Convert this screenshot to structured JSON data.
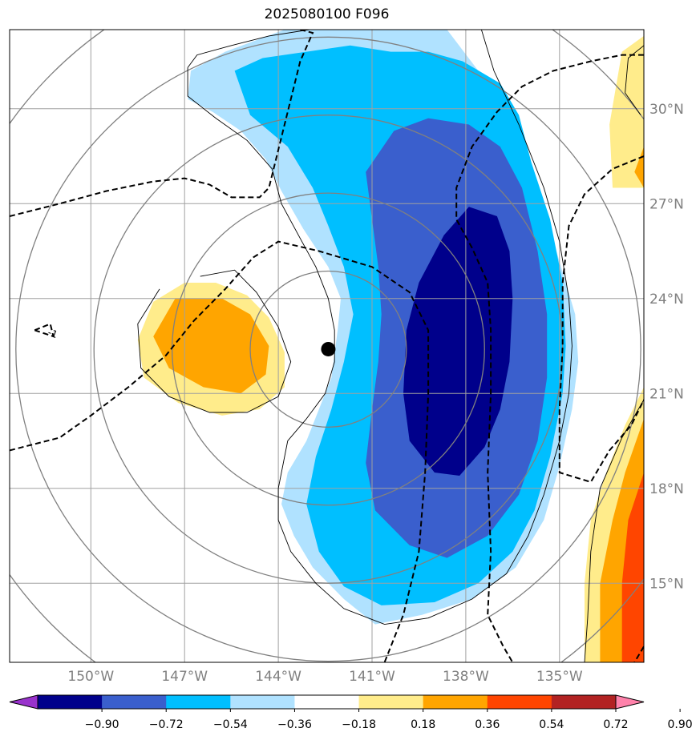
{
  "title": "2025080100 F096",
  "chart_data": {
    "type": "heatmap",
    "title": "2025080100 F096",
    "projection": "map",
    "lon_range": [
      -152.6,
      -132.3
    ],
    "lat_range": [
      12.5,
      32.5
    ],
    "lon_ticks": [
      -150,
      -147,
      -144,
      -141,
      -138,
      -135
    ],
    "lon_tick_labels": [
      "150°W",
      "147°W",
      "144°W",
      "141°W",
      "138°W",
      "135°W"
    ],
    "lat_ticks": [
      15,
      18,
      21,
      24,
      27,
      30
    ],
    "lat_tick_labels": [
      "15°N",
      "18°N",
      "21°N",
      "24°N",
      "27°N",
      "30°N"
    ],
    "grid": true,
    "center_marker": {
      "lon": -142.4,
      "lat": 22.4
    },
    "contour_label": "-1",
    "colorbar": {
      "orientation": "horizontal",
      "extend": "both",
      "levels": [
        -0.9,
        -0.72,
        -0.54,
        -0.36,
        -0.18,
        0.18,
        0.36,
        0.54,
        0.72,
        0.9
      ],
      "tick_labels": [
        "−0.90",
        "−0.72",
        "−0.54",
        "−0.36",
        "−0.18",
        "0.18",
        "0.36",
        "0.54",
        "0.72",
        "0.90"
      ],
      "colors": [
        "#9932cc",
        "#00008b",
        "#3a5fcd",
        "#00bfff",
        "#b0e2ff",
        "#ffffff",
        "#ffec8b",
        "#ffa500",
        "#ff4500",
        "#b22222",
        "#ff82ab"
      ]
    },
    "filled_regions": [
      {
        "level": "-0.18 to -0.36",
        "color": "#b0e2ff",
        "pts": [
          [
            -143.8,
            32.5
          ],
          [
            -145.7,
            31.8
          ],
          [
            -146.8,
            31.2
          ],
          [
            -146.9,
            30.3
          ],
          [
            -146.1,
            29.9
          ],
          [
            -145.2,
            29.3
          ],
          [
            -144.4,
            28.4
          ],
          [
            -143.9,
            27.4
          ],
          [
            -143.2,
            26.2
          ],
          [
            -142.4,
            25.0
          ],
          [
            -142.0,
            24.0
          ],
          [
            -142.1,
            23.0
          ],
          [
            -142.3,
            21.5
          ],
          [
            -142.7,
            20.5
          ],
          [
            -143.1,
            19.5
          ],
          [
            -143.7,
            18.5
          ],
          [
            -143.9,
            17.5
          ],
          [
            -143.5,
            16.5
          ],
          [
            -142.9,
            15.5
          ],
          [
            -141.9,
            14.5
          ],
          [
            -140.9,
            13.7
          ],
          [
            -139.4,
            14.0
          ],
          [
            -137.8,
            14.5
          ],
          [
            -136.4,
            15.5
          ],
          [
            -135.5,
            17.0
          ],
          [
            -135.0,
            18.7
          ],
          [
            -134.6,
            20.5
          ],
          [
            -134.4,
            22.0
          ],
          [
            -134.5,
            23.5
          ],
          [
            -135.1,
            25.5
          ],
          [
            -135.7,
            27.5
          ],
          [
            -136.4,
            29.5
          ],
          [
            -137.6,
            31.2
          ],
          [
            -138.6,
            32.5
          ]
        ]
      },
      {
        "level": "-0.36 to -0.54",
        "color": "#00bfff",
        "pts": [
          [
            -145.4,
            31.2
          ],
          [
            -144.5,
            31.6
          ],
          [
            -143.1,
            31.8
          ],
          [
            -141.7,
            32.0
          ],
          [
            -140.4,
            31.8
          ],
          [
            -139.2,
            31.8
          ],
          [
            -138.1,
            31.5
          ],
          [
            -136.9,
            30.8
          ],
          [
            -136.3,
            29.8
          ],
          [
            -135.9,
            28.3
          ],
          [
            -135.3,
            26.5
          ],
          [
            -134.9,
            24.5
          ],
          [
            -134.8,
            22.5
          ],
          [
            -134.9,
            21.0
          ],
          [
            -135.3,
            19.0
          ],
          [
            -135.8,
            17.3
          ],
          [
            -136.5,
            16.0
          ],
          [
            -137.6,
            15.0
          ],
          [
            -139.0,
            14.4
          ],
          [
            -140.7,
            14.3
          ],
          [
            -141.9,
            14.9
          ],
          [
            -142.7,
            16.0
          ],
          [
            -143.1,
            17.5
          ],
          [
            -142.8,
            19.0
          ],
          [
            -142.3,
            20.5
          ],
          [
            -141.9,
            22.0
          ],
          [
            -141.6,
            23.5
          ],
          [
            -141.9,
            25.0
          ],
          [
            -142.4,
            26.3
          ],
          [
            -142.9,
            27.5
          ],
          [
            -143.7,
            28.8
          ],
          [
            -144.9,
            29.8
          ]
        ]
      },
      {
        "level": "-0.54 to -0.72",
        "color": "#3a5fcd",
        "pts": [
          [
            -140.3,
            29.3
          ],
          [
            -139.2,
            29.7
          ],
          [
            -137.9,
            29.5
          ],
          [
            -136.9,
            28.8
          ],
          [
            -136.2,
            27.5
          ],
          [
            -135.7,
            25.5
          ],
          [
            -135.4,
            23.5
          ],
          [
            -135.4,
            21.5
          ],
          [
            -135.7,
            19.5
          ],
          [
            -136.3,
            17.8
          ],
          [
            -137.3,
            16.5
          ],
          [
            -138.6,
            15.8
          ],
          [
            -139.8,
            16.2
          ],
          [
            -140.9,
            17.3
          ],
          [
            -141.2,
            18.8
          ],
          [
            -141.0,
            20.5
          ],
          [
            -140.8,
            22.0
          ],
          [
            -140.7,
            23.5
          ],
          [
            -140.8,
            25.0
          ],
          [
            -141.0,
            26.5
          ],
          [
            -141.2,
            28.0
          ]
        ]
      },
      {
        "level": "< -0.72",
        "color": "#00008b",
        "pts": [
          [
            -137.9,
            26.9
          ],
          [
            -137.0,
            26.6
          ],
          [
            -136.6,
            25.5
          ],
          [
            -136.5,
            24.0
          ],
          [
            -136.6,
            22.0
          ],
          [
            -136.9,
            20.5
          ],
          [
            -137.4,
            19.3
          ],
          [
            -138.2,
            18.4
          ],
          [
            -139.0,
            18.5
          ],
          [
            -139.8,
            19.5
          ],
          [
            -140.0,
            21.0
          ],
          [
            -139.9,
            23.0
          ],
          [
            -139.5,
            24.5
          ],
          [
            -138.7,
            26.0
          ]
        ]
      },
      {
        "level": "0.18 to 0.36",
        "color": "#ffec8b",
        "pts": [
          [
            -147.0,
            24.5
          ],
          [
            -146.0,
            24.5
          ],
          [
            -145.0,
            24.1
          ],
          [
            -144.3,
            23.4
          ],
          [
            -143.8,
            22.3
          ],
          [
            -143.8,
            21.2
          ],
          [
            -144.6,
            20.5
          ],
          [
            -145.8,
            20.3
          ],
          [
            -147.2,
            20.7
          ],
          [
            -148.3,
            21.5
          ],
          [
            -148.5,
            22.7
          ],
          [
            -148.0,
            23.9
          ]
        ]
      },
      {
        "level": "0.36 to 0.54",
        "color": "#ffa500",
        "pts": [
          [
            -147.3,
            24.0
          ],
          [
            -145.8,
            24.0
          ],
          [
            -144.9,
            23.5
          ],
          [
            -144.3,
            22.5
          ],
          [
            -144.4,
            21.6
          ],
          [
            -145.2,
            21.0
          ],
          [
            -146.4,
            21.2
          ],
          [
            -147.5,
            21.8
          ],
          [
            -148.0,
            22.8
          ]
        ]
      },
      {
        "level": "0.18 to 0.36",
        "color": "#ffec8b",
        "pts": [
          [
            -133.0,
            31.8
          ],
          [
            -132.3,
            32.3
          ],
          [
            -132.3,
            27.5
          ],
          [
            -133.3,
            27.5
          ],
          [
            -133.4,
            29.5
          ]
        ]
      },
      {
        "level": "0.36 to 0.54",
        "color": "#ffa500",
        "pts": [
          [
            -132.3,
            28.8
          ],
          [
            -132.3,
            27.5
          ],
          [
            -132.6,
            28.0
          ]
        ]
      },
      {
        "level": "0.18 to 0.36",
        "color": "#ffec8b",
        "pts": [
          [
            -132.3,
            21.2
          ],
          [
            -132.9,
            20.0
          ],
          [
            -133.5,
            18.5
          ],
          [
            -134.0,
            17.0
          ],
          [
            -134.2,
            15.0
          ],
          [
            -134.2,
            12.5
          ],
          [
            -132.3,
            12.5
          ]
        ]
      },
      {
        "level": "0.36 to 0.54",
        "color": "#ffa500",
        "pts": [
          [
            -132.3,
            20.2
          ],
          [
            -132.9,
            18.5
          ],
          [
            -133.3,
            17.0
          ],
          [
            -133.7,
            15.0
          ],
          [
            -133.7,
            12.5
          ],
          [
            -132.3,
            12.5
          ]
        ]
      },
      {
        "level": "0.54 to 0.72",
        "color": "#ff4500",
        "pts": [
          [
            -132.3,
            18.5
          ],
          [
            -132.8,
            17.0
          ],
          [
            -133.0,
            15.0
          ],
          [
            -133.0,
            12.5
          ],
          [
            -132.3,
            12.5
          ]
        ]
      }
    ],
    "dashed_lines": [
      [
        [
          -152.6,
          26.6
        ],
        [
          -151.0,
          27.0
        ],
        [
          -149.5,
          27.4
        ],
        [
          -148.0,
          27.7
        ],
        [
          -147.0,
          27.8
        ],
        [
          -146.2,
          27.6
        ],
        [
          -145.5,
          27.2
        ],
        [
          -144.6,
          27.2
        ],
        [
          -144.3,
          27.5
        ],
        [
          -143.8,
          29.5
        ],
        [
          -143.3,
          31.5
        ],
        [
          -142.9,
          32.4
        ],
        [
          -143.3,
          32.5
        ]
      ],
      [
        [
          -152.6,
          19.2
        ],
        [
          -151.0,
          19.6
        ],
        [
          -150.0,
          20.3
        ],
        [
          -148.8,
          21.2
        ],
        [
          -147.6,
          22.2
        ],
        [
          -146.7,
          23.3
        ],
        [
          -145.7,
          24.3
        ],
        [
          -144.8,
          25.3
        ],
        [
          -144.0,
          25.8
        ],
        [
          -142.7,
          25.5
        ],
        [
          -141.0,
          25.0
        ],
        [
          -139.8,
          24.2
        ],
        [
          -139.2,
          23.0
        ],
        [
          -139.2,
          21.0
        ],
        [
          -139.3,
          18.5
        ],
        [
          -139.5,
          16.0
        ],
        [
          -140.0,
          14.0
        ],
        [
          -140.6,
          12.5
        ]
      ],
      [
        [
          -132.3,
          31.7
        ],
        [
          -133.0,
          31.7
        ],
        [
          -134.0,
          31.5
        ],
        [
          -135.2,
          31.2
        ],
        [
          -136.2,
          30.7
        ],
        [
          -137.0,
          29.9
        ],
        [
          -137.8,
          28.8
        ],
        [
          -138.3,
          27.5
        ],
        [
          -138.3,
          26.5
        ],
        [
          -137.8,
          25.6
        ],
        [
          -137.3,
          24.5
        ],
        [
          -137.2,
          23.0
        ],
        [
          -137.2,
          21.0
        ],
        [
          -137.3,
          18.5
        ],
        [
          -137.2,
          16.0
        ],
        [
          -137.3,
          14.0
        ],
        [
          -136.8,
          13.0
        ],
        [
          -136.5,
          12.5
        ]
      ],
      [
        [
          -132.3,
          28.5
        ],
        [
          -133.3,
          28.1
        ],
        [
          -134.2,
          27.3
        ],
        [
          -134.7,
          26.3
        ],
        [
          -134.9,
          24.5
        ],
        [
          -134.9,
          22.5
        ],
        [
          -135.0,
          20.5
        ],
        [
          -135.0,
          18.5
        ],
        [
          -134.0,
          18.2
        ],
        [
          -133.4,
          19.2
        ],
        [
          -132.7,
          20.0
        ],
        [
          -132.3,
          20.8
        ]
      ],
      [
        [
          -132.3,
          13.0
        ],
        [
          -132.6,
          12.5
        ]
      ],
      [
        [
          -151.8,
          23.0
        ],
        [
          -151.3,
          23.2
        ],
        [
          -151.2,
          22.8
        ],
        [
          -151.8,
          23.0
        ]
      ]
    ],
    "black_lines": [
      [
        [
          -146.9,
          31.3
        ],
        [
          -146.6,
          31.7
        ],
        [
          -145.5,
          32.0
        ],
        [
          -144.3,
          32.3
        ],
        [
          -143.0,
          32.5
        ]
      ],
      [
        [
          -146.9,
          31.3
        ],
        [
          -146.9,
          30.4
        ],
        [
          -146.0,
          29.7
        ],
        [
          -145.0,
          29.0
        ],
        [
          -144.2,
          28.1
        ],
        [
          -143.9,
          27.0
        ],
        [
          -143.3,
          25.9
        ],
        [
          -142.8,
          25.0
        ],
        [
          -142.4,
          24.0
        ],
        [
          -142.2,
          23.0
        ],
        [
          -142.2,
          22.0
        ],
        [
          -142.5,
          21.0
        ],
        [
          -143.1,
          20.2
        ],
        [
          -143.7,
          19.5
        ],
        [
          -144.0,
          18.0
        ],
        [
          -144.0,
          17.0
        ],
        [
          -143.6,
          16.0
        ],
        [
          -142.8,
          15.0
        ],
        [
          -141.9,
          14.2
        ],
        [
          -140.6,
          13.7
        ],
        [
          -139.2,
          13.9
        ],
        [
          -137.8,
          14.5
        ],
        [
          -136.7,
          15.3
        ],
        [
          -136.0,
          16.5
        ],
        [
          -135.5,
          17.8
        ],
        [
          -135.0,
          19.5
        ],
        [
          -134.7,
          21.0
        ],
        [
          -134.6,
          22.5
        ],
        [
          -134.7,
          24.0
        ],
        [
          -135.0,
          25.8
        ],
        [
          -135.5,
          27.5
        ],
        [
          -136.3,
          29.5
        ],
        [
          -137.1,
          31.2
        ],
        [
          -137.5,
          32.5
        ]
      ],
      [
        [
          -146.5,
          24.7
        ],
        [
          -145.4,
          24.9
        ],
        [
          -144.7,
          24.2
        ],
        [
          -144.0,
          23.1
        ],
        [
          -143.6,
          22.0
        ],
        [
          -144.0,
          20.9
        ],
        [
          -145.0,
          20.4
        ],
        [
          -146.2,
          20.4
        ],
        [
          -147.5,
          20.9
        ],
        [
          -148.4,
          21.8
        ],
        [
          -148.5,
          23.2
        ],
        [
          -147.8,
          24.3
        ]
      ],
      [
        [
          -132.4,
          29.8
        ],
        [
          -132.9,
          30.5
        ],
        [
          -132.8,
          31.6
        ],
        [
          -132.3,
          32.0
        ]
      ],
      [
        [
          -132.3,
          20.8
        ],
        [
          -133.0,
          19.6
        ],
        [
          -133.7,
          18.0
        ],
        [
          -134.0,
          16.0
        ],
        [
          -134.1,
          13.9
        ],
        [
          -134.2,
          12.5
        ]
      ]
    ],
    "gray_circles": [
      {
        "lon": -142.4,
        "lat": 22.4,
        "r_deg": 2.5
      },
      {
        "lon": -142.4,
        "lat": 22.4,
        "r_deg": 5.0
      },
      {
        "lon": -142.4,
        "lat": 22.4,
        "r_deg": 7.5
      },
      {
        "lon": -142.4,
        "lat": 22.4,
        "r_deg": 10.0
      },
      {
        "lon": -142.4,
        "lat": 22.4,
        "r_deg": 12.5
      }
    ]
  }
}
